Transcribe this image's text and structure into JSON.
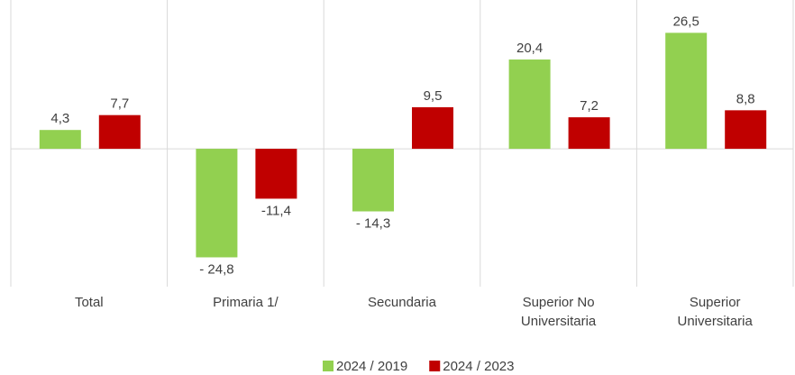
{
  "chart_data": {
    "type": "bar",
    "categories": [
      "Total",
      "Primaria 1/",
      "Secundaria",
      "Superior No Universitaria",
      "Superior Universitaria"
    ],
    "series": [
      {
        "name": "2024 / 2019",
        "color": "#92d050",
        "values": [
          4.3,
          -24.8,
          -14.3,
          20.4,
          26.5
        ],
        "value_labels": [
          "4,3",
          "- 24,8",
          "- 14,3",
          "20,4",
          "26,5"
        ]
      },
      {
        "name": "2024 / 2023",
        "color": "#c00000",
        "values": [
          7.7,
          -11.4,
          9.5,
          7.2,
          8.8
        ],
        "value_labels": [
          "7,7",
          "-11,4",
          "9,5",
          "7,2",
          "8,8"
        ]
      }
    ],
    "ylim": [
      -31.5,
      34
    ],
    "legend": "bottom"
  }
}
